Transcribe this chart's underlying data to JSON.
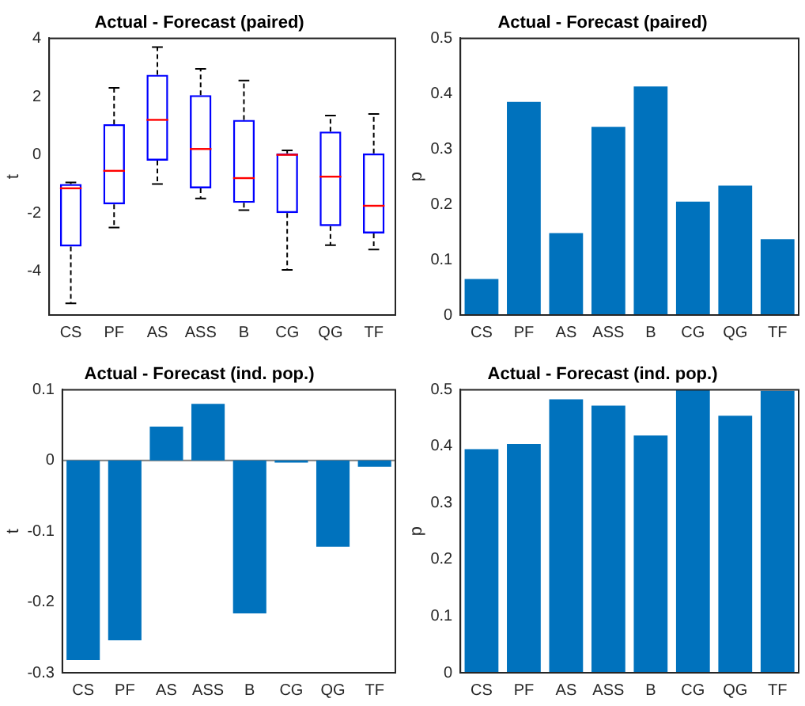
{
  "chart_data": [
    {
      "type": "box",
      "title": "Actual - Forecast (paired)",
      "ylabel": "t",
      "categories": [
        "CS",
        "PF",
        "AS",
        "ASS",
        "B",
        "CG",
        "QG",
        "TF"
      ],
      "ylim": [
        -5.5,
        4
      ],
      "yticks": [
        -4,
        -2,
        0,
        2,
        4
      ],
      "grid": false,
      "legend": false,
      "series": [
        {
          "color": "#0000ff",
          "boxes": [
            {
              "low": -5.1,
              "q1": -3.15,
              "median": -1.15,
              "q3": -1.0,
              "high": -0.95
            },
            {
              "low": -2.5,
              "q1": -1.7,
              "median": -0.55,
              "q3": 1.05,
              "high": 2.3
            },
            {
              "low": -1.0,
              "q1": -0.2,
              "median": 1.2,
              "q3": 2.75,
              "high": 3.7
            },
            {
              "low": -1.5,
              "q1": -1.15,
              "median": 0.2,
              "q3": 2.05,
              "high": 2.95
            },
            {
              "low": -1.9,
              "q1": -1.65,
              "median": -0.8,
              "q3": 1.2,
              "high": 2.55
            },
            {
              "low": -3.95,
              "q1": -2.0,
              "median": 0.0,
              "q3": 0.05,
              "high": 0.15
            },
            {
              "low": -3.1,
              "q1": -2.45,
              "median": -0.75,
              "q3": 0.8,
              "high": 1.35
            },
            {
              "low": -3.25,
              "q1": -2.7,
              "median": -1.75,
              "q3": 0.05,
              "high": 1.4
            }
          ]
        }
      ]
    },
    {
      "type": "bar",
      "title": "Actual - Forecast (paired)",
      "ylabel": "p",
      "categories": [
        "CS",
        "PF",
        "AS",
        "ASS",
        "B",
        "CG",
        "QG",
        "TF"
      ],
      "ylim": [
        0,
        0.5
      ],
      "yticks": [
        0,
        0.1,
        0.2,
        0.3,
        0.4,
        0.5
      ],
      "grid": false,
      "legend": false,
      "series": [
        {
          "color": "#0072bd",
          "values": [
            0.065,
            0.385,
            0.148,
            0.34,
            0.413,
            0.205,
            0.234,
            0.137
          ]
        }
      ]
    },
    {
      "type": "bar",
      "title": "Actual - Forecast (ind. pop.)",
      "ylabel": "t",
      "categories": [
        "CS",
        "PF",
        "AS",
        "ASS",
        "B",
        "CG",
        "QG",
        "TF"
      ],
      "ylim": [
        -0.3,
        0.1
      ],
      "yticks": [
        -0.3,
        -0.2,
        -0.1,
        0,
        0.1
      ],
      "grid": false,
      "legend": false,
      "ref_lines": [
        {
          "axis": "y",
          "value": 0,
          "color": "#7f7f7f"
        }
      ],
      "series": [
        {
          "color": "#0072bd",
          "values": [
            -0.282,
            -0.254,
            0.048,
            0.08,
            -0.216,
            -0.003,
            -0.122,
            -0.009
          ]
        }
      ]
    },
    {
      "type": "bar",
      "title": "Actual - Forecast (ind. pop.)",
      "ylabel": "p",
      "categories": [
        "CS",
        "PF",
        "AS",
        "ASS",
        "B",
        "CG",
        "QG",
        "TF"
      ],
      "ylim": [
        0,
        0.5
      ],
      "yticks": [
        0,
        0.1,
        0.2,
        0.3,
        0.4,
        0.5
      ],
      "grid": false,
      "legend": false,
      "series": [
        {
          "color": "#0072bd",
          "values": [
            0.395,
            0.404,
            0.483,
            0.472,
            0.419,
            0.5,
            0.454,
            0.498
          ]
        }
      ]
    }
  ]
}
